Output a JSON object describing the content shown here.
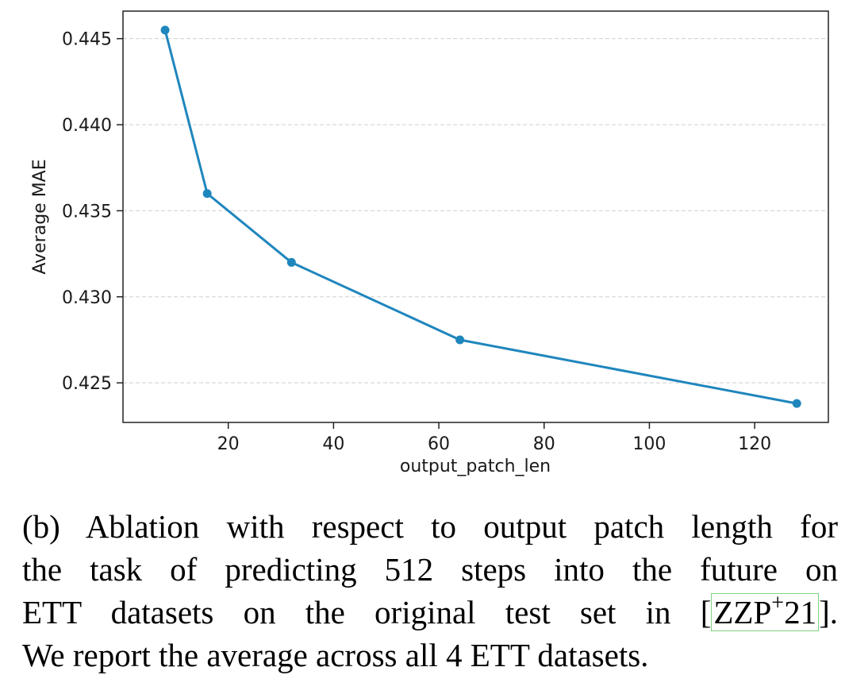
{
  "chart_data": {
    "type": "line",
    "xlabel": "output_patch_len",
    "ylabel": "Average MAE",
    "x": [
      8,
      16,
      32,
      64,
      128
    ],
    "y": [
      0.4455,
      0.436,
      0.432,
      0.4275,
      0.4238
    ],
    "xlim": [
      0,
      134
    ],
    "ylim": [
      0.4227,
      0.4466
    ],
    "xticks": [
      20,
      40,
      60,
      80,
      100,
      120
    ],
    "yticks": [
      0.425,
      0.43,
      0.435,
      0.44,
      0.445
    ],
    "xtick_labels": [
      "20",
      "40",
      "60",
      "80",
      "100",
      "120"
    ],
    "ytick_labels": [
      "0.425",
      "0.430",
      "0.435",
      "0.440",
      "0.445"
    ],
    "grid": "horizontal dashed",
    "line_color": "#1f86bd",
    "grid_color": "#cfcfcf"
  },
  "caption": {
    "line1": "(b) Ablation with respect to output patch length for",
    "line2": "the task of predicting 512 steps into the future on",
    "line3_pre": "ETT datasets on the original test set in [",
    "cite_main": "ZZP",
    "cite_sup": "+",
    "cite_year": "21",
    "line3_post": "].",
    "line4": "We report the average across all 4 ETT datasets."
  }
}
